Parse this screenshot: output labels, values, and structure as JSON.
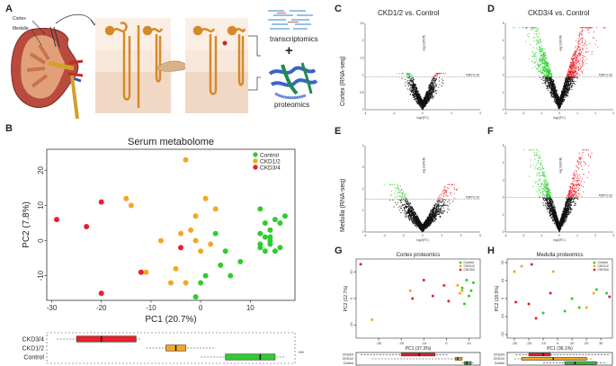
{
  "panels": {
    "A": "A",
    "B": "B",
    "C": "C",
    "D": "D",
    "E": "E",
    "F": "F",
    "G": "G",
    "H": "H"
  },
  "panelA": {
    "label_cortex": "Cortex",
    "label_medulla": "Medulla",
    "label_transcriptomics": "transcriptomics",
    "label_plus": "+",
    "label_proteomics": "proteomics"
  },
  "volcano": {
    "title_C": "CKD1/2 vs. Control",
    "title_D": "CKD3/4 vs. Control",
    "row_cortex": "Cortex (RNA-seq)",
    "row_medulla": "Medulla (RNA-seq)",
    "fdr_label": "FDR=0.10",
    "xlabel": "log2(FC)",
    "ylabel": "-log10(FDR)",
    "colors": {
      "down": "#2ecc2e",
      "up": "#e8202a",
      "ns": "#111111"
    },
    "axes": {
      "C": {
        "xticks": [
          "-4",
          "-2",
          "0",
          "2",
          "4"
        ],
        "yticks": [
          "0",
          "0.5",
          "1",
          "1.5",
          "2",
          "2.5"
        ]
      },
      "D": {
        "xticks": [
          "-3",
          "-2",
          "-1",
          "0",
          "1",
          "2",
          "3"
        ],
        "yticks": [
          "0",
          "1",
          "2",
          "3",
          "4",
          "5"
        ]
      },
      "E": {
        "xticks": [
          "-6",
          "-4",
          "-2",
          "0",
          "2",
          "4",
          "6"
        ],
        "yticks": [
          "0",
          "1",
          "2",
          "3",
          "4"
        ]
      },
      "F": {
        "xticks": [
          "-3",
          "-2",
          "-1",
          "0",
          "1",
          "2",
          "3"
        ],
        "yticks": [
          "0",
          "1",
          "2",
          "3",
          "4",
          "5"
        ]
      }
    }
  },
  "chart_data": [
    {
      "id": "B-pca",
      "type": "scatter",
      "title": "Serum metabolome",
      "xlabel": "PC1 (20.7%)",
      "ylabel": "PC2 (7.8%)",
      "xlim": [
        -31,
        19
      ],
      "ylim": [
        -17,
        26
      ],
      "xticks": [
        -30,
        -20,
        -10,
        0,
        10
      ],
      "yticks": [
        -10,
        0,
        10,
        20
      ],
      "legend_position": "top-right",
      "series": [
        {
          "name": "Control",
          "color": "#2ecc2e",
          "points": [
            [
              12,
              9
            ],
            [
              13,
              5
            ],
            [
              14,
              3
            ],
            [
              15,
              6
            ],
            [
              16,
              5
            ],
            [
              17,
              7
            ],
            [
              13,
              1
            ],
            [
              14,
              0
            ],
            [
              12,
              -1
            ],
            [
              13,
              -3
            ],
            [
              15,
              -3
            ],
            [
              16,
              -2
            ],
            [
              12,
              2
            ],
            [
              14,
              1
            ],
            [
              5,
              -3
            ],
            [
              4,
              -7
            ],
            [
              6,
              -10
            ],
            [
              0,
              -12
            ],
            [
              -1,
              -16
            ],
            [
              1,
              -10
            ],
            [
              3,
              2
            ],
            [
              12,
              -2
            ],
            [
              14,
              -1
            ],
            [
              8,
              -6
            ]
          ]
        },
        {
          "name": "CKD1/2",
          "color": "#f5a623",
          "points": [
            [
              -14,
              10
            ],
            [
              -15,
              12
            ],
            [
              -3,
              23
            ],
            [
              -1,
              7
            ],
            [
              -2,
              3
            ],
            [
              -4,
              2
            ],
            [
              -5,
              -8
            ],
            [
              -6,
              -12
            ],
            [
              -3,
              -12
            ],
            [
              -1,
              0
            ],
            [
              0,
              -3
            ],
            [
              2,
              -1
            ],
            [
              3,
              9
            ],
            [
              1,
              12
            ],
            [
              -8,
              0
            ],
            [
              -11,
              -9
            ]
          ]
        },
        {
          "name": "CKD3/4",
          "color": "#e8202a",
          "points": [
            [
              -29,
              6
            ],
            [
              -23,
              4
            ],
            [
              -20,
              11
            ],
            [
              -20,
              -15
            ],
            [
              -12,
              -9
            ],
            [
              -4,
              -2
            ]
          ]
        }
      ]
    },
    {
      "id": "B-box",
      "type": "box",
      "xlabel": "PC1 (20.7%)",
      "categories": [
        "CKD3/4",
        "CKD1/2",
        "Control"
      ],
      "boxes": [
        {
          "name": "CKD3/4",
          "color": "#e8202a",
          "min": -29,
          "q1": -25,
          "median": -20,
          "q3": -13,
          "max": -12
        },
        {
          "name": "CKD1/2",
          "color": "#f5a623",
          "min": -11,
          "q1": -7,
          "median": -5,
          "q3": -3,
          "max": 3
        },
        {
          "name": "Control",
          "color": "#2ecc2e",
          "min": 0,
          "q1": 5,
          "median": 12,
          "q3": 15,
          "max": 17
        }
      ],
      "significance": "***"
    },
    {
      "id": "G-pca",
      "type": "scatter",
      "title": "Cortex proteomics",
      "xlabel": "PC1 (37.3%)",
      "ylabel": "PC2 (12.7%)",
      "xlim": [
        -40,
        15
      ],
      "ylim": [
        -15,
        15
      ],
      "xticks": [
        -30,
        -20,
        -10,
        0,
        10
      ],
      "yticks": [
        -10,
        0,
        10
      ],
      "legend_position": "top-right",
      "series": [
        {
          "name": "Control",
          "color": "#2ecc2e",
          "points": [
            [
              9,
              7
            ],
            [
              12,
              6
            ],
            [
              11,
              3
            ],
            [
              7,
              4
            ],
            [
              10,
              1
            ],
            [
              8,
              -2
            ]
          ]
        },
        {
          "name": "CKD1/2",
          "color": "#f5a623",
          "points": [
            [
              5,
              5
            ],
            [
              6,
              2
            ],
            [
              7,
              3
            ],
            [
              -16,
              3
            ],
            [
              -33,
              -8
            ]
          ]
        },
        {
          "name": "CKD3/4",
          "color": "#e8202a",
          "points": [
            [
              -38,
              13
            ],
            [
              -10,
              7
            ],
            [
              -15,
              0
            ],
            [
              -1,
              5
            ],
            [
              1,
              -1
            ],
            [
              -6,
              1
            ]
          ]
        }
      ]
    },
    {
      "id": "H-pca",
      "type": "scatter",
      "title": "Medulla proteomics",
      "xlabel": "PC1 (36.1%)",
      "ylabel": "PC2 (18.9%)",
      "xlim": [
        -35,
        38
      ],
      "ylim": [
        -22,
        22
      ],
      "xticks": [
        -30,
        -20,
        -10,
        0,
        10,
        20,
        30
      ],
      "yticks": [
        -20,
        -10,
        0,
        10,
        20
      ],
      "legend_position": "top-right",
      "series": [
        {
          "name": "Control",
          "color": "#2ecc2e",
          "points": [
            [
              27,
              5
            ],
            [
              34,
              3
            ],
            [
              15,
              -5
            ],
            [
              5,
              -7
            ],
            [
              -10,
              -8
            ],
            [
              10,
              0
            ]
          ]
        },
        {
          "name": "CKD1/2",
          "color": "#f5a623",
          "points": [
            [
              -25,
              18
            ],
            [
              -30,
              15
            ],
            [
              -3,
              15
            ],
            [
              25,
              3
            ],
            [
              20,
              -5
            ]
          ]
        },
        {
          "name": "CKD3/4",
          "color": "#e8202a",
          "points": [
            [
              -29,
              -2
            ],
            [
              -18,
              19
            ],
            [
              -5,
              3
            ],
            [
              -15,
              -11
            ],
            [
              -20,
              -3
            ],
            [
              36,
              1
            ]
          ]
        }
      ]
    },
    {
      "id": "G-box",
      "type": "box",
      "categories": [
        "CKD3/4",
        "CKD1/2",
        "Control"
      ],
      "boxes": [
        {
          "name": "CKD3/4",
          "color": "#e8202a",
          "min": -38,
          "q1": -20,
          "median": -12,
          "q3": -5,
          "max": 1
        },
        {
          "name": "CKD1/2",
          "color": "#f5a623",
          "min": -33,
          "q1": 4,
          "median": 5,
          "q3": 7,
          "max": 7
        },
        {
          "name": "Control",
          "color": "#2ecc2e",
          "min": 7,
          "q1": 8,
          "median": 9,
          "q3": 11,
          "max": 12
        }
      ]
    },
    {
      "id": "H-box",
      "type": "box",
      "categories": [
        "CKD3/4",
        "CKD1/2",
        "Control"
      ],
      "boxes": [
        {
          "name": "CKD3/4",
          "color": "#e8202a",
          "min": -29,
          "q1": -20,
          "median": -10,
          "q3": -5,
          "max": 36
        },
        {
          "name": "CKD1/2",
          "color": "#f5a623",
          "min": -30,
          "q1": -25,
          "median": -3,
          "q3": 20,
          "max": 25
        },
        {
          "name": "Control",
          "color": "#2ecc2e",
          "min": -10,
          "q1": 5,
          "median": 12,
          "q3": 27,
          "max": 34
        }
      ]
    }
  ]
}
